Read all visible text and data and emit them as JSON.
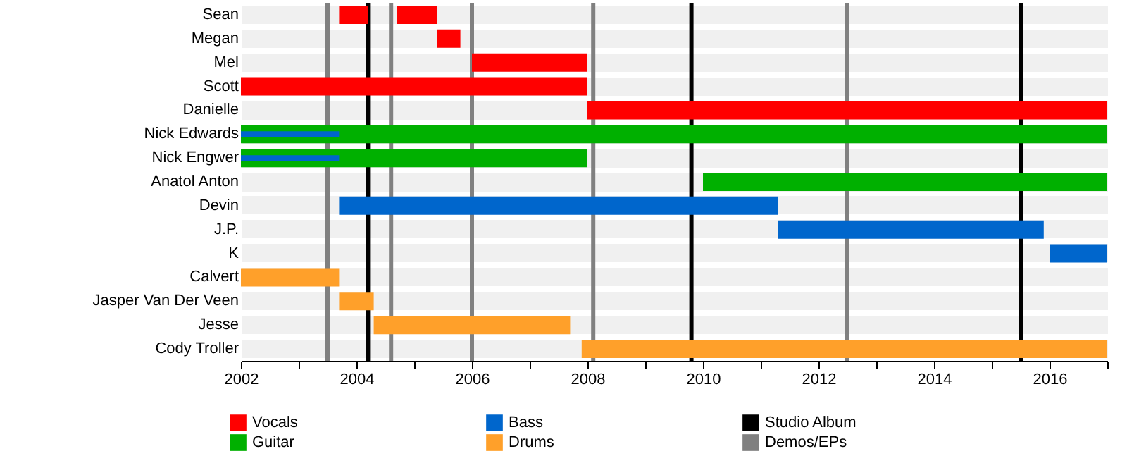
{
  "chart_data": {
    "type": "bar",
    "orientation": "horizontal",
    "categories": [
      "Sean",
      "Megan",
      "Mel",
      "Scott",
      "Danielle",
      "Nick Edwards",
      "Nick Engwer",
      "Anatol Anton",
      "Devin",
      "J.P.",
      "K",
      "Calvert",
      "Jasper Van Der Veen",
      "Jesse",
      "Cody Troller"
    ],
    "series": [
      {
        "name": "Vocals",
        "color": "#ff0000",
        "base": [
          2003.7,
          2005.4,
          2006.0,
          2002,
          2008.0,
          null,
          null,
          null,
          null,
          null,
          null,
          null,
          null,
          null,
          null
        ],
        "values": [
          0.5,
          0.4,
          2.0,
          6.0,
          9.0,
          null,
          null,
          null,
          null,
          null,
          null,
          null,
          null,
          null,
          null
        ]
      },
      {
        "color": "#ff0000",
        "base": [
          2004.7,
          null,
          null,
          null,
          null,
          null,
          null,
          null,
          null,
          null,
          null,
          null,
          null,
          null,
          null
        ],
        "values": [
          0.7,
          null,
          null,
          null,
          null,
          null,
          null,
          null,
          null,
          null,
          null,
          null,
          null,
          null,
          null
        ]
      },
      {
        "name": "Guitar",
        "color": "#00b000",
        "base": [
          null,
          null,
          null,
          null,
          null,
          2002,
          2002,
          2010.0,
          null,
          null,
          null,
          null,
          null,
          null,
          null
        ],
        "values": [
          null,
          null,
          null,
          null,
          null,
          15.0,
          6.0,
          7.0,
          null,
          null,
          null,
          null,
          null,
          null,
          null
        ]
      },
      {
        "name": "Bass",
        "color": "#0066cc",
        "base": [
          null,
          null,
          null,
          null,
          null,
          null,
          null,
          null,
          2003.7,
          2011.3,
          2016.0,
          null,
          null,
          null,
          null
        ],
        "values": [
          null,
          null,
          null,
          null,
          null,
          null,
          null,
          null,
          7.6,
          4.6,
          1.0,
          null,
          null,
          null,
          null
        ]
      },
      {
        "name": "Drums",
        "color": "#ffa02a",
        "base": [
          null,
          null,
          null,
          null,
          null,
          null,
          null,
          null,
          null,
          null,
          null,
          2002,
          2003.7,
          2004.3,
          2007.9
        ],
        "values": [
          null,
          null,
          null,
          null,
          null,
          null,
          null,
          null,
          null,
          null,
          null,
          1.7,
          0.6,
          3.4,
          9.1
        ]
      },
      {
        "color": "#0066cc",
        "base": [
          null,
          null,
          null,
          null,
          null,
          2002,
          2002,
          null,
          null,
          null,
          null,
          null,
          null,
          null,
          null
        ],
        "values": [
          null,
          null,
          null,
          null,
          null,
          1.7,
          1.7,
          null,
          null,
          null,
          null,
          null,
          null,
          null,
          null
        ]
      }
    ],
    "ref_lines": [
      {
        "axis": "x",
        "value": 2004.2,
        "label": "Studio Album",
        "color": "#000000"
      },
      {
        "axis": "x",
        "value": 2009.8,
        "color": "#000000"
      },
      {
        "axis": "x",
        "value": 2015.5,
        "color": "#000000"
      },
      {
        "axis": "x",
        "value": 2003.5,
        "label": "Demos/EPs",
        "color": "#808080"
      },
      {
        "axis": "x",
        "value": 2004.6,
        "color": "#808080"
      },
      {
        "axis": "x",
        "value": 2006.0,
        "color": "#808080"
      },
      {
        "axis": "x",
        "value": 2008.1,
        "color": "#808080"
      },
      {
        "axis": "x",
        "value": 2012.5,
        "color": "#808080"
      }
    ],
    "xlim": [
      2002,
      2017
    ],
    "xticks": [
      2002,
      {
        "value": 2003,
        "label": null
      },
      2004,
      {
        "value": 2005,
        "label": null
      },
      2006,
      {
        "value": 2007,
        "label": null
      },
      2008,
      {
        "value": 2009,
        "label": null
      },
      2010,
      {
        "value": 2011,
        "label": null
      },
      2012,
      {
        "value": 2013,
        "label": null
      },
      2014,
      {
        "value": 2015,
        "label": null
      },
      2016,
      {
        "value": 2017,
        "label": null
      }
    ],
    "grid": "y",
    "legend": "bottom"
  }
}
